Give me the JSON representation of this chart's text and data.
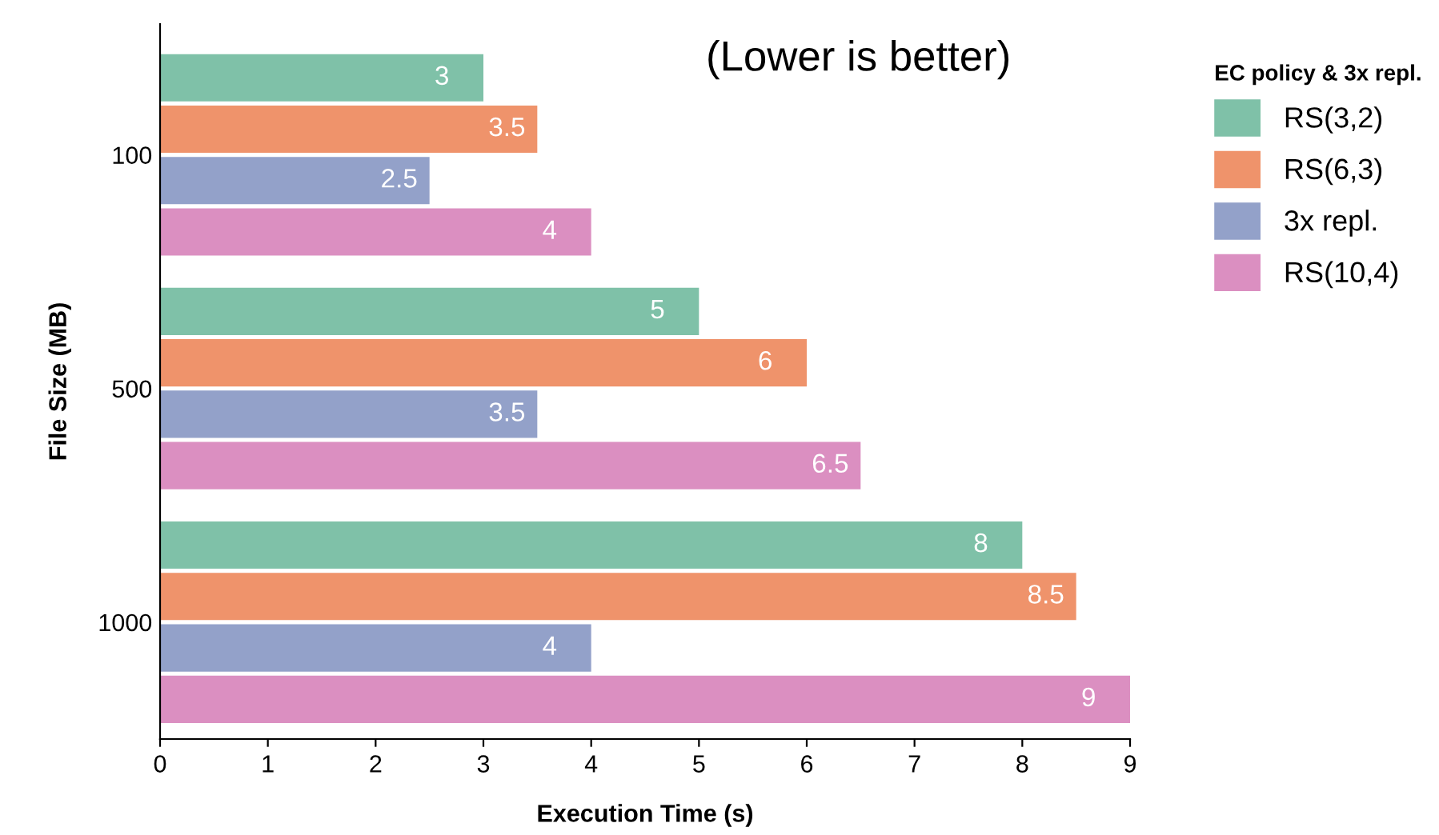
{
  "chart_data": {
    "type": "bar",
    "orientation": "horizontal",
    "xlabel": "Execution Time (s)",
    "ylabel": "File Size (MB)",
    "legend_title": "EC policy & 3x repl.",
    "annotations": [
      "(Lower is better)"
    ],
    "categories": [
      "100",
      "500",
      "1000"
    ],
    "series": [
      {
        "name": "RS(3,2)",
        "color": "#7fc1a8",
        "values": [
          3,
          5,
          8
        ]
      },
      {
        "name": "RS(6,3)",
        "color": "#ef936b",
        "values": [
          3.5,
          6,
          8.5
        ]
      },
      {
        "name": "3x repl.",
        "color": "#93a1c9",
        "values": [
          2.5,
          3.5,
          4
        ]
      },
      {
        "name": "RS(10,4)",
        "color": "#db8fc1",
        "values": [
          4,
          6.5,
          9
        ]
      }
    ],
    "xlim": [
      0,
      9
    ],
    "xticks": [
      0,
      1,
      2,
      3,
      4,
      5,
      6,
      7,
      8,
      9
    ],
    "grid": false,
    "legend": "top right",
    "data_labels": true
  }
}
